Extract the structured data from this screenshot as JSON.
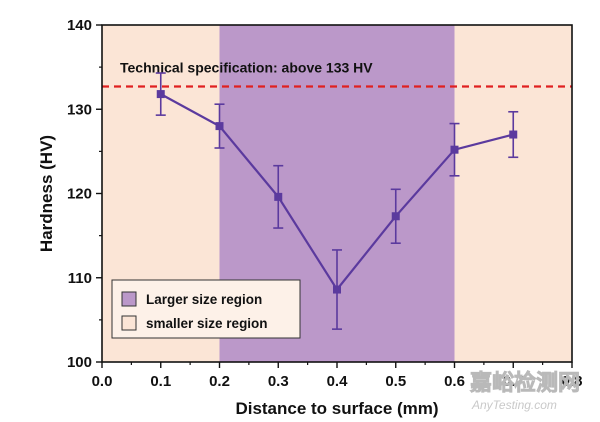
{
  "chart_data": {
    "type": "line",
    "title": "",
    "xlabel": "Distance to surface (mm)",
    "ylabel": "Hardness (HV)",
    "xlim": [
      0.0,
      0.8
    ],
    "ylim": [
      100,
      140
    ],
    "x_ticks": [
      "0.0",
      "0.1",
      "0.2",
      "0.3",
      "0.4",
      "0.5",
      "0.6",
      "0.7",
      "0.8"
    ],
    "y_ticks": [
      "100",
      "110",
      "120",
      "130",
      "140"
    ],
    "grid": false,
    "series": [
      {
        "name": "Hardness",
        "x": [
          0.1,
          0.2,
          0.3,
          0.4,
          0.5,
          0.6,
          0.7
        ],
        "y": [
          131.8,
          128.0,
          119.6,
          108.6,
          117.3,
          125.2,
          127.0
        ],
        "error": [
          2.5,
          2.6,
          3.7,
          4.7,
          3.2,
          3.1,
          2.7
        ],
        "color": "#5b3a9e",
        "marker": "square"
      }
    ],
    "regions": [
      {
        "name": "smaller size region",
        "x_from": 0.0,
        "x_to": 0.2,
        "color": "#fbe5d6"
      },
      {
        "name": "Larger size region",
        "x_from": 0.2,
        "x_to": 0.6,
        "color": "#bb98c9"
      },
      {
        "name": "smaller size region",
        "x_from": 0.6,
        "x_to": 0.8,
        "color": "#fbe5d6"
      }
    ],
    "reference_line": {
      "y": 132.7,
      "label": "Technical specification: above 133 HV",
      "color": "#e02020"
    },
    "legend": {
      "position": "bottom-left",
      "entries": [
        {
          "label": "Larger size region",
          "color": "#bb98c9"
        },
        {
          "label": "smaller size region",
          "color": "#fbe5d6"
        }
      ]
    }
  },
  "watermark": {
    "chinese": "嘉峪检测网",
    "english": "AnyTesting.com"
  }
}
